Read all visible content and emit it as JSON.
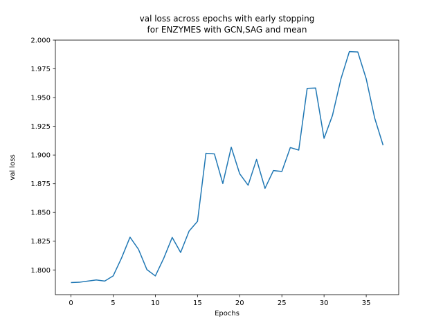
{
  "chart_data": {
    "type": "line",
    "title_lines": [
      "val loss across epochs with early stopping",
      "for ENZYMES with GCN,SAG and mean"
    ],
    "xlabel": "Epochs",
    "ylabel": "val loss",
    "xlim": [
      -1.85,
      38.85
    ],
    "ylim": [
      1.7785,
      2.0
    ],
    "xticks": [
      0,
      5,
      10,
      15,
      20,
      25,
      30,
      35
    ],
    "xtick_labels": [
      "0",
      "5",
      "10",
      "15",
      "20",
      "25",
      "30",
      "35"
    ],
    "yticks": [
      1.8,
      1.825,
      1.85,
      1.875,
      1.9,
      1.925,
      1.95,
      1.975,
      2.0
    ],
    "ytick_labels": [
      "1.800",
      "1.825",
      "1.850",
      "1.875",
      "1.900",
      "1.925",
      "1.950",
      "1.975",
      "2.000"
    ],
    "grid": false,
    "color": "#1f77b4",
    "series": [
      {
        "x": [
          0,
          1,
          2,
          3,
          4,
          5,
          6,
          7,
          8,
          9,
          10,
          11,
          12,
          13,
          14,
          15,
          16,
          17,
          18,
          19,
          20,
          21,
          22,
          23,
          24,
          25,
          26,
          27,
          28,
          29,
          30,
          31,
          32,
          33,
          34,
          35,
          36,
          37
        ],
        "values": [
          1.789,
          1.7893,
          1.7903,
          1.7913,
          1.7903,
          1.7948,
          1.8105,
          1.8285,
          1.818,
          1.8003,
          1.7948,
          1.8102,
          1.8283,
          1.8152,
          1.8338,
          1.8423,
          1.9015,
          1.901,
          1.8752,
          1.9068,
          1.8837,
          1.8737,
          1.8962,
          1.871,
          1.8865,
          1.8857,
          1.9065,
          1.9043,
          1.958,
          1.9583,
          1.9145,
          1.9345,
          1.9662,
          1.99,
          1.9897,
          1.9663,
          1.9322,
          1.9085
        ]
      }
    ]
  }
}
